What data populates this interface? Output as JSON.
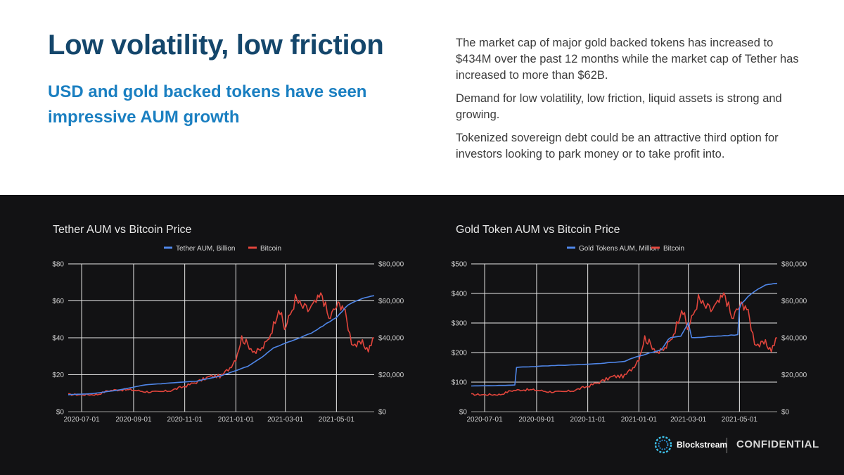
{
  "slide": {
    "title": "Low volatility, low friction",
    "subtitle": "USD and gold backed tokens have seen impressive AUM growth",
    "paragraphs": [
      "The market cap of major gold backed tokens has increased to $434M over the past 12 months while the market cap of Tether has increased to more than $62B.",
      "Demand for low volatility, low friction, liquid assets is strong and growing.",
      "Tokenized sovereign debt could be an attractive third option for investors looking to park money or to take profit into."
    ],
    "brand": "Blockstream",
    "confidential": "CONFIDENTIAL",
    "colors": {
      "title": "#14466b",
      "subtitle": "#1a7fc1",
      "background_dark": "#121214",
      "series_blue": "#4f86e8",
      "series_red": "#e2453c"
    }
  },
  "chart_data": [
    {
      "type": "line",
      "title": "Tether AUM vs Bitcoin Price",
      "x_ticks": [
        "2020-07-01",
        "2020-09-01",
        "2020-11-01",
        "2021-01-01",
        "2021-03-01",
        "2021-05-01"
      ],
      "x_range": [
        "2020-06-15",
        "2021-06-15"
      ],
      "left_axis": {
        "ticks": [
          "$0",
          "$20",
          "$40",
          "$60",
          "$80"
        ],
        "range": [
          0,
          80
        ]
      },
      "right_axis": {
        "ticks": [
          "$0",
          "$20,000",
          "$40,000",
          "$60,000",
          "$80,000"
        ],
        "range": [
          0,
          80000
        ]
      },
      "legend": [
        "Tether AUM, Billion",
        "Bitcoin"
      ],
      "series": [
        {
          "name": "Tether AUM, Billion",
          "axis": "left",
          "color": "#4f86e8",
          "x": [
            "2020-06-15",
            "2020-07-15",
            "2020-08-15",
            "2020-09-15",
            "2020-10-15",
            "2020-11-15",
            "2020-12-15",
            "2021-01-15",
            "2021-02-01",
            "2021-02-15",
            "2021-03-01",
            "2021-03-15",
            "2021-04-01",
            "2021-04-15",
            "2021-05-01",
            "2021-05-15",
            "2021-06-01",
            "2021-06-15"
          ],
          "values": [
            9.2,
            9.8,
            11.8,
            14.5,
            15.5,
            16.5,
            19.5,
            24.5,
            29.5,
            34.5,
            37.0,
            39.5,
            42.5,
            46.5,
            51.0,
            58.0,
            61.5,
            62.8
          ]
        },
        {
          "name": "Bitcoin",
          "axis": "right",
          "color": "#e2453c",
          "x": [
            "2020-06-15",
            "2020-07-01",
            "2020-07-20",
            "2020-08-01",
            "2020-08-15",
            "2020-09-01",
            "2020-09-15",
            "2020-10-01",
            "2020-10-15",
            "2020-11-01",
            "2020-11-15",
            "2020-12-01",
            "2020-12-15",
            "2020-12-25",
            "2021-01-01",
            "2021-01-08",
            "2021-01-15",
            "2021-01-25",
            "2021-02-01",
            "2021-02-08",
            "2021-02-15",
            "2021-02-21",
            "2021-02-28",
            "2021-03-05",
            "2021-03-13",
            "2021-03-20",
            "2021-03-28",
            "2021-04-05",
            "2021-04-14",
            "2021-04-22",
            "2021-05-01",
            "2021-05-08",
            "2021-05-13",
            "2021-05-19",
            "2021-05-25",
            "2021-06-01",
            "2021-06-08",
            "2021-06-15"
          ],
          "values": [
            9300,
            9200,
            9300,
            11300,
            11900,
            11700,
            10800,
            10600,
            11400,
            13700,
            16000,
            19000,
            19300,
            24000,
            29000,
            40000,
            36500,
            32000,
            34000,
            38500,
            47000,
            57000,
            45000,
            50000,
            61000,
            57000,
            55000,
            58000,
            63500,
            50000,
            57000,
            58500,
            50000,
            38000,
            36000,
            37000,
            33500,
            40000
          ]
        }
      ]
    },
    {
      "type": "line",
      "title": "Gold Token AUM vs Bitcoin Price",
      "x_ticks": [
        "2020-07-01",
        "2020-09-01",
        "2020-11-01",
        "2021-01-01",
        "2021-03-01",
        "2021-05-01"
      ],
      "x_range": [
        "2020-06-15",
        "2021-06-15"
      ],
      "left_axis": {
        "ticks": [
          "$0",
          "$100",
          "$200",
          "$300",
          "$400",
          "$500"
        ],
        "range": [
          0,
          500
        ]
      },
      "right_axis": {
        "ticks": [
          "$0",
          "$20,000",
          "$40,000",
          "$60,000",
          "$80,000"
        ],
        "range": [
          0,
          80000
        ]
      },
      "legend": [
        "Gold Tokens AUM, Million",
        "Bitcoin"
      ],
      "series": [
        {
          "name": "Gold Tokens AUM, Million",
          "axis": "left",
          "color": "#4f86e8",
          "x": [
            "2020-06-15",
            "2020-07-10",
            "2020-08-06",
            "2020-08-08",
            "2020-09-15",
            "2020-11-01",
            "2020-12-15",
            "2020-12-25",
            "2021-01-10",
            "2021-01-28",
            "2021-02-05",
            "2021-02-08",
            "2021-02-20",
            "2021-02-28",
            "2021-03-01",
            "2021-03-05",
            "2021-04-01",
            "2021-04-29",
            "2021-05-01",
            "2021-05-03",
            "2021-05-15",
            "2021-06-01",
            "2021-06-15"
          ],
          "values": [
            87,
            88,
            90,
            150,
            155,
            160,
            170,
            182,
            195,
            210,
            245,
            250,
            255,
            295,
            300,
            250,
            255,
            260,
            350,
            365,
            400,
            430,
            434
          ]
        },
        {
          "name": "Bitcoin",
          "axis": "right",
          "color": "#e2453c",
          "x": [
            "2020-06-15",
            "2020-07-01",
            "2020-07-20",
            "2020-08-01",
            "2020-08-15",
            "2020-09-01",
            "2020-09-15",
            "2020-10-01",
            "2020-10-15",
            "2020-11-01",
            "2020-11-15",
            "2020-12-01",
            "2020-12-15",
            "2020-12-25",
            "2021-01-01",
            "2021-01-08",
            "2021-01-15",
            "2021-01-25",
            "2021-02-01",
            "2021-02-08",
            "2021-02-15",
            "2021-02-21",
            "2021-02-28",
            "2021-03-05",
            "2021-03-13",
            "2021-03-20",
            "2021-03-28",
            "2021-04-05",
            "2021-04-14",
            "2021-04-22",
            "2021-05-01",
            "2021-05-08",
            "2021-05-13",
            "2021-05-19",
            "2021-05-25",
            "2021-06-01",
            "2021-06-08",
            "2021-06-15"
          ],
          "values": [
            9300,
            9200,
            9300,
            11300,
            11900,
            11700,
            10800,
            10600,
            11400,
            13700,
            16000,
            19000,
            19300,
            24000,
            29000,
            40000,
            36500,
            32000,
            34000,
            38500,
            47000,
            57000,
            45000,
            50000,
            61000,
            57000,
            55000,
            58000,
            63500,
            50000,
            57000,
            58500,
            50000,
            38000,
            36000,
            37000,
            33500,
            40000
          ]
        }
      ]
    }
  ]
}
